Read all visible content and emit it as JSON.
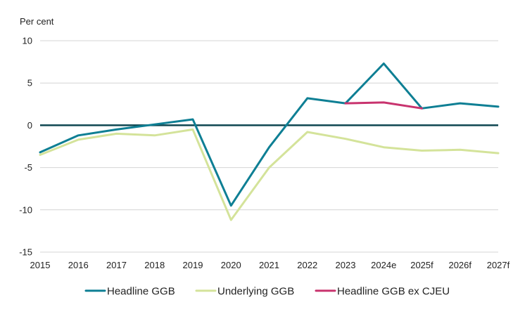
{
  "chart_data": {
    "type": "line",
    "title": "",
    "ylabel": "Per cent",
    "xlabel": "",
    "categories": [
      "2015",
      "2016",
      "2017",
      "2018",
      "2019",
      "2020",
      "2021",
      "2022",
      "2023",
      "2024e",
      "2025f",
      "2026f",
      "2027f"
    ],
    "ylim": [
      -15,
      10
    ],
    "yticks": [
      10,
      5,
      0,
      -5,
      -10,
      -15
    ],
    "grid": true,
    "zero_line_color": "#0d4650",
    "legend_position": "bottom",
    "series": [
      {
        "name": "Headline GGB",
        "color": "#0e7f94",
        "values": [
          -3.2,
          -1.2,
          -0.5,
          0.1,
          0.7,
          -9.5,
          -2.6,
          3.2,
          2.6,
          7.3,
          2.0,
          2.6,
          2.2
        ]
      },
      {
        "name": "Underlying GGB",
        "color": "#d4e39a",
        "values": [
          -3.5,
          -1.7,
          -1.0,
          -1.2,
          -0.5,
          -11.2,
          -5.0,
          -0.8,
          -1.6,
          -2.6,
          -3.0,
          -2.9,
          -3.3
        ]
      },
      {
        "name": "Headline GGB ex CJEU",
        "color": "#c8336e",
        "values": [
          null,
          null,
          null,
          null,
          null,
          null,
          null,
          null,
          2.6,
          2.7,
          2.0,
          null,
          null
        ]
      }
    ]
  }
}
